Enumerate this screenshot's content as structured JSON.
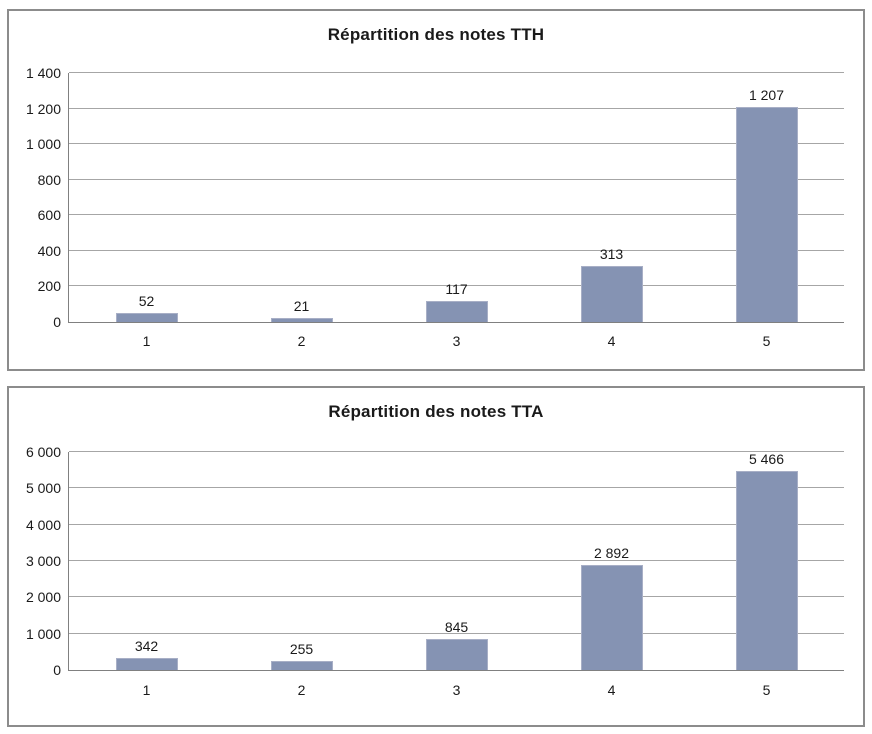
{
  "styles": {
    "bar_color": "#8593b3",
    "bar_border_color": "#a8afc6",
    "gridline_color": "#a6a6a6",
    "axis_color": "#808080",
    "panel_border_color": "#8c8c8c",
    "text_color": "#1a1a1a",
    "background_color": "#ffffff"
  },
  "chart_data": [
    {
      "type": "bar",
      "title": "Répartition des notes TTH",
      "categories": [
        "1",
        "2",
        "3",
        "4",
        "5"
      ],
      "values": [
        52,
        21,
        117,
        313,
        1207
      ],
      "value_labels": [
        "52",
        "21",
        "117",
        "313",
        "1 207"
      ],
      "xlabel": "",
      "ylabel": "",
      "ylim": [
        0,
        1400
      ],
      "yticks": [
        {
          "value": 0,
          "label": "0"
        },
        {
          "value": 200,
          "label": "200"
        },
        {
          "value": 400,
          "label": "400"
        },
        {
          "value": 600,
          "label": "600"
        },
        {
          "value": 800,
          "label": "800"
        },
        {
          "value": 1000,
          "label": "1 000"
        },
        {
          "value": 1200,
          "label": "1 200"
        },
        {
          "value": 1400,
          "label": "1 400"
        }
      ],
      "grid": true,
      "legend": "none"
    },
    {
      "type": "bar",
      "title": "Répartition des notes TTA",
      "categories": [
        "1",
        "2",
        "3",
        "4",
        "5"
      ],
      "values": [
        342,
        255,
        845,
        2892,
        5466
      ],
      "value_labels": [
        "342",
        "255",
        "845",
        "2 892",
        "5 466"
      ],
      "xlabel": "",
      "ylabel": "",
      "ylim": [
        0,
        6000
      ],
      "yticks": [
        {
          "value": 0,
          "label": "0"
        },
        {
          "value": 1000,
          "label": "1 000"
        },
        {
          "value": 2000,
          "label": "2 000"
        },
        {
          "value": 3000,
          "label": "3 000"
        },
        {
          "value": 4000,
          "label": "4 000"
        },
        {
          "value": 5000,
          "label": "5 000"
        },
        {
          "value": 6000,
          "label": "6 000"
        }
      ],
      "grid": true,
      "legend": "none"
    }
  ]
}
